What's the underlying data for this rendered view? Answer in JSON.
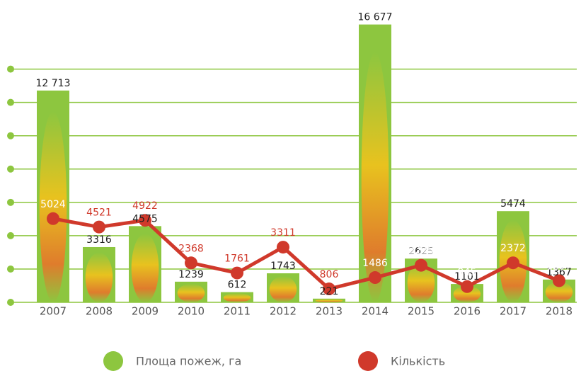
{
  "chart_data": {
    "type": "bar_line",
    "categories": [
      "2007",
      "2008",
      "2009",
      "2010",
      "2011",
      "2012",
      "2013",
      "2014",
      "2015",
      "2016",
      "2017",
      "2018"
    ],
    "series": [
      {
        "name": "Площа пожеж, га",
        "color": "#8dc63f",
        "values": [
          12713,
          3316,
          4575,
          1239,
          612,
          1743,
          221,
          16677,
          2625,
          1101,
          5474,
          1367
        ],
        "value_labels": [
          "12 713",
          "3316",
          "4575",
          "1239",
          "612",
          "1743",
          "221",
          "16 677",
          "2625",
          "1101",
          "5474",
          "1367"
        ]
      },
      {
        "name": "Кількість",
        "color": "#d0392b",
        "axis": "y2",
        "values": [
          5024,
          4521,
          4922,
          2368,
          1761,
          3311,
          806,
          1486,
          2225,
          945,
          2372,
          1297
        ]
      }
    ],
    "ylim": [
      0,
      17000
    ],
    "yticks": [
      0,
      2000,
      4000,
      6000,
      8000,
      10000,
      12000,
      14000
    ],
    "y2lim": [
      0,
      17000
    ],
    "grid": true
  }
}
